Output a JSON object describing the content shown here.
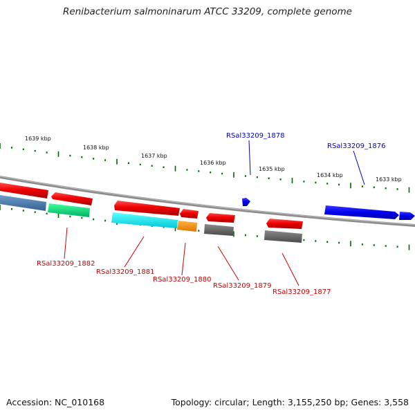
{
  "title": "Renibacterium salmoninarum ATCC 33209, complete genome",
  "footer": {
    "accession": "Accession: NC_010168",
    "summary": "Topology: circular; Length: 3,155,250 bp; Genes: 3,558"
  },
  "scale": [
    "1639 kbp",
    "1638 kbp",
    "1637 kbp",
    "1636 kbp",
    "1635 kbp",
    "1634 kbp",
    "1633 kbp"
  ],
  "gene_labels": [
    "RSal33209_1878",
    "RSal33209_1876",
    "RSal33209_1882",
    "RSal33209_1881",
    "RSal33209_1880",
    "RSal33209_1879",
    "RSal33209_1877"
  ],
  "colors": {
    "forward_gene": "#0000ee",
    "reverse_gene": "#cc0000",
    "gene_red": "#ff0000",
    "backbone": "#808080",
    "ticks": "#006600"
  }
}
